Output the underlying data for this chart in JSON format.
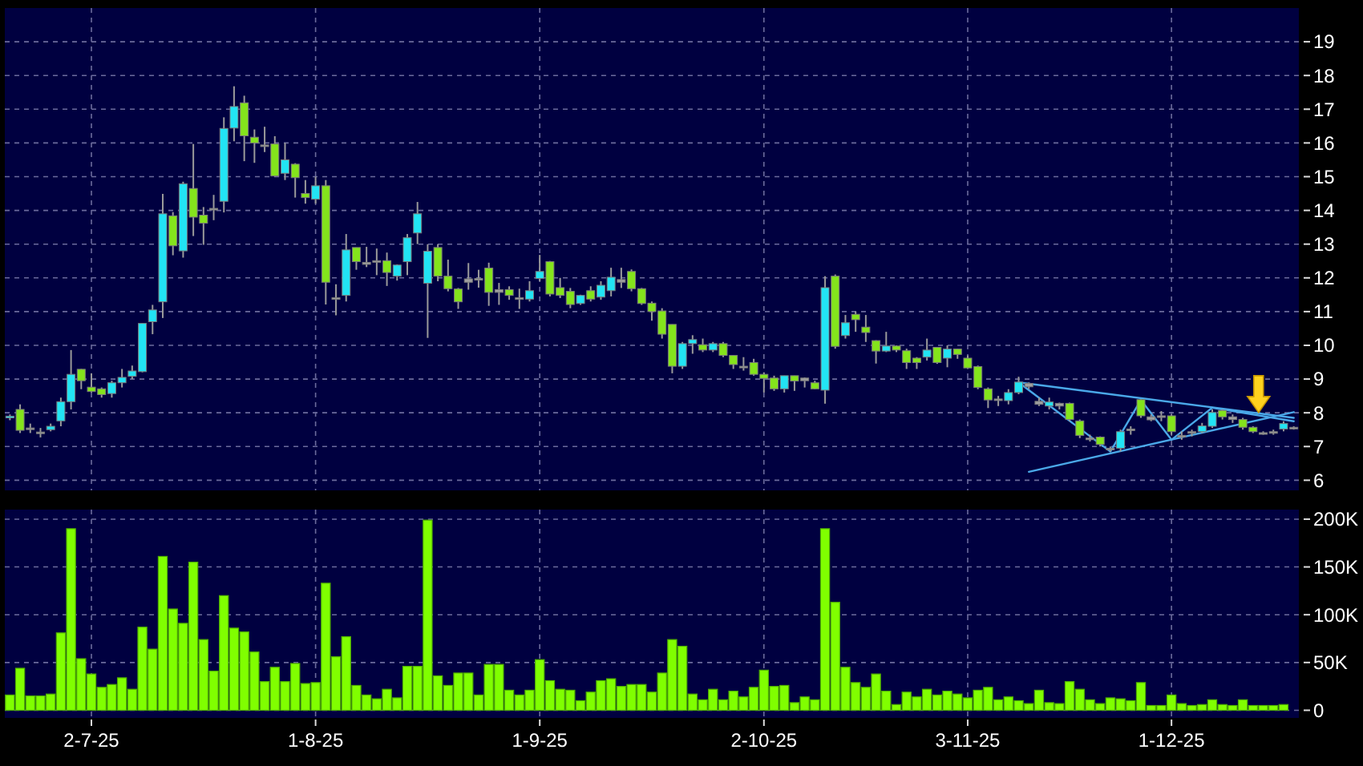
{
  "chart_data": [
    {
      "type": "candlestick",
      "tick_labels": "y",
      "grid": true,
      "categories": [
        null,
        null,
        null,
        null,
        null,
        null,
        null,
        null,
        null,
        null,
        null,
        null,
        null,
        null,
        null,
        null,
        null,
        null,
        null,
        null,
        null,
        null,
        null,
        null,
        null,
        null,
        null,
        null,
        null,
        null,
        null,
        null,
        null,
        null,
        null,
        null,
        null,
        null,
        null,
        null,
        null,
        null,
        null,
        null,
        null,
        null,
        null,
        null,
        null,
        null,
        null,
        null,
        null,
        null,
        null,
        null,
        null,
        null,
        null,
        null,
        null,
        null,
        null,
        null,
        null,
        null,
        null,
        null,
        null,
        null,
        null,
        null,
        null,
        null,
        null,
        null,
        null,
        null,
        null,
        null,
        null,
        null,
        null,
        null,
        null,
        null,
        null,
        null,
        null,
        null,
        null,
        null,
        null,
        null,
        null,
        null,
        null,
        null,
        null,
        null,
        null,
        null,
        null,
        null,
        null,
        null,
        null,
        null,
        null,
        null,
        null,
        null,
        null,
        null,
        null,
        null,
        null,
        null,
        null,
        null,
        null,
        null,
        null,
        null,
        null,
        null,
        null
      ],
      "ohlc": [
        [
          7.85,
          7.95,
          7.78,
          7.9
        ],
        [
          8.1,
          8.25,
          7.4,
          7.48
        ],
        [
          7.55,
          7.68,
          7.4,
          7.55
        ],
        [
          7.43,
          7.55,
          7.27,
          7.43
        ],
        [
          7.5,
          7.68,
          7.45,
          7.6
        ],
        [
          7.76,
          8.45,
          7.6,
          8.33
        ],
        [
          8.33,
          9.86,
          8.1,
          9.14
        ],
        [
          9.29,
          9.3,
          8.7,
          8.95
        ],
        [
          8.76,
          9.17,
          8.6,
          8.63
        ],
        [
          8.71,
          8.75,
          8.45,
          8.54
        ],
        [
          8.57,
          8.95,
          8.45,
          8.89
        ],
        [
          8.89,
          9.3,
          8.75,
          9.05
        ],
        [
          9.08,
          9.4,
          9.0,
          9.24
        ],
        [
          9.22,
          10.65,
          9.2,
          10.65
        ],
        [
          10.7,
          11.2,
          10.33,
          11.05
        ],
        [
          11.29,
          14.49,
          10.81,
          13.9
        ],
        [
          13.84,
          13.95,
          12.67,
          12.95
        ],
        [
          12.8,
          14.85,
          12.6,
          14.79
        ],
        [
          14.65,
          15.97,
          13.24,
          13.8
        ],
        [
          13.86,
          14.1,
          12.98,
          13.62
        ],
        [
          14.06,
          14.46,
          13.71,
          14.06
        ],
        [
          14.27,
          16.76,
          13.94,
          16.43
        ],
        [
          16.44,
          17.68,
          16.05,
          17.08
        ],
        [
          17.19,
          17.4,
          15.46,
          16.21
        ],
        [
          16.17,
          16.4,
          15.41,
          16.0
        ],
        [
          15.94,
          16.48,
          15.73,
          15.94
        ],
        [
          15.97,
          16.2,
          15.0,
          15.02
        ],
        [
          15.1,
          16.0,
          14.9,
          15.5
        ],
        [
          15.37,
          15.4,
          14.38,
          14.97
        ],
        [
          14.5,
          14.9,
          14.2,
          14.38
        ],
        [
          14.33,
          15.0,
          14.2,
          14.73
        ],
        [
          14.73,
          14.9,
          11.21,
          11.87
        ],
        [
          11.41,
          11.81,
          10.89,
          11.41
        ],
        [
          11.48,
          13.3,
          11.3,
          12.83
        ],
        [
          12.9,
          12.9,
          12.24,
          12.48
        ],
        [
          12.46,
          12.92,
          12.32,
          12.4
        ],
        [
          12.51,
          12.87,
          12.08,
          12.51
        ],
        [
          12.51,
          12.75,
          11.76,
          12.16
        ],
        [
          12.05,
          12.4,
          11.92,
          12.38
        ],
        [
          12.48,
          13.3,
          12.08,
          13.19
        ],
        [
          13.33,
          14.25,
          13.0,
          13.9
        ],
        [
          11.84,
          13.0,
          10.22,
          12.79
        ],
        [
          12.9,
          13.0,
          11.9,
          12.05
        ],
        [
          12.05,
          12.54,
          11.6,
          11.68
        ],
        [
          11.67,
          11.7,
          11.08,
          11.29
        ],
        [
          11.97,
          12.44,
          11.65,
          11.87
        ],
        [
          11.98,
          12.24,
          11.71,
          11.98
        ],
        [
          12.29,
          12.45,
          11.17,
          11.57
        ],
        [
          11.65,
          11.85,
          11.2,
          11.57
        ],
        [
          11.65,
          11.75,
          11.35,
          11.48
        ],
        [
          11.41,
          11.68,
          11.08,
          11.41
        ],
        [
          11.37,
          11.9,
          11.3,
          11.62
        ],
        [
          11.98,
          12.68,
          11.9,
          12.19
        ],
        [
          12.48,
          12.5,
          11.45,
          11.52
        ],
        [
          11.71,
          12.0,
          11.4,
          11.48
        ],
        [
          11.6,
          11.7,
          11.1,
          11.21
        ],
        [
          11.24,
          11.5,
          11.2,
          11.48
        ],
        [
          11.62,
          11.75,
          11.3,
          11.37
        ],
        [
          11.43,
          11.9,
          11.35,
          11.78
        ],
        [
          11.62,
          12.3,
          11.45,
          12.02
        ],
        [
          11.95,
          12.3,
          11.7,
          11.87
        ],
        [
          12.19,
          12.25,
          11.6,
          11.68
        ],
        [
          11.68,
          11.7,
          11.2,
          11.24
        ],
        [
          11.25,
          11.3,
          10.73,
          11.0
        ],
        [
          11.02,
          11.1,
          10.2,
          10.33
        ],
        [
          10.62,
          10.62,
          9.17,
          9.38
        ],
        [
          9.38,
          10.1,
          9.3,
          10.05
        ],
        [
          10.05,
          10.3,
          9.75,
          10.17
        ],
        [
          10.02,
          10.2,
          9.8,
          9.86
        ],
        [
          9.86,
          10.1,
          9.8,
          10.05
        ],
        [
          10.05,
          10.1,
          9.65,
          9.7
        ],
        [
          9.7,
          9.7,
          9.3,
          9.43
        ],
        [
          9.38,
          9.65,
          9.25,
          9.38
        ],
        [
          9.49,
          9.6,
          9.1,
          9.14
        ],
        [
          9.14,
          9.2,
          8.6,
          9.02
        ],
        [
          9.03,
          9.1,
          8.65,
          8.71
        ],
        [
          8.71,
          9.1,
          8.6,
          9.1
        ],
        [
          9.1,
          9.1,
          8.65,
          8.94
        ],
        [
          9.03,
          9.05,
          8.75,
          8.95
        ],
        [
          8.89,
          8.95,
          8.7,
          8.71
        ],
        [
          8.67,
          12.05,
          8.27,
          11.71
        ],
        [
          12.05,
          12.1,
          9.9,
          9.97
        ],
        [
          10.29,
          10.9,
          10.2,
          10.67
        ],
        [
          10.92,
          11.0,
          10.4,
          10.76
        ],
        [
          10.54,
          10.9,
          10.1,
          10.38
        ],
        [
          10.14,
          10.15,
          9.46,
          9.83
        ],
        [
          9.83,
          10.4,
          9.8,
          9.98
        ],
        [
          9.98,
          10.0,
          9.8,
          9.86
        ],
        [
          9.84,
          9.9,
          9.3,
          9.49
        ],
        [
          9.62,
          9.65,
          9.3,
          9.49
        ],
        [
          9.65,
          10.2,
          9.55,
          9.86
        ],
        [
          9.94,
          9.95,
          9.45,
          9.49
        ],
        [
          9.62,
          10.0,
          9.35,
          9.89
        ],
        [
          9.89,
          9.9,
          9.6,
          9.73
        ],
        [
          9.62,
          9.7,
          9.3,
          9.33
        ],
        [
          9.37,
          9.4,
          8.7,
          8.75
        ],
        [
          8.71,
          8.75,
          8.14,
          8.38
        ],
        [
          8.41,
          8.5,
          8.2,
          8.41
        ],
        [
          8.36,
          8.7,
          8.25,
          8.6
        ],
        [
          8.6,
          9.07,
          8.55,
          8.91
        ],
        [
          8.87,
          8.9,
          8.7,
          8.77
        ],
        [
          8.34,
          8.45,
          8.2,
          8.25
        ],
        [
          8.2,
          8.45,
          8.1,
          8.32
        ],
        [
          8.28,
          8.3,
          8.1,
          8.2
        ],
        [
          8.28,
          8.3,
          7.75,
          7.8
        ],
        [
          7.76,
          7.8,
          7.25,
          7.33
        ],
        [
          7.25,
          7.35,
          7.15,
          7.25
        ],
        [
          7.28,
          7.3,
          7.0,
          7.06
        ],
        [
          6.95,
          7.0,
          6.85,
          6.95
        ],
        [
          6.95,
          7.5,
          6.85,
          7.44
        ],
        [
          7.52,
          7.6,
          7.35,
          7.52
        ],
        [
          8.39,
          8.4,
          7.85,
          7.91
        ],
        [
          7.88,
          7.95,
          7.75,
          7.79
        ],
        [
          7.91,
          8.05,
          7.75,
          7.91
        ],
        [
          7.91,
          7.95,
          7.35,
          7.44
        ],
        [
          7.33,
          7.45,
          7.2,
          7.33
        ],
        [
          7.44,
          7.5,
          7.3,
          7.44
        ],
        [
          7.44,
          7.7,
          7.4,
          7.61
        ],
        [
          7.6,
          8.1,
          7.55,
          8.01
        ],
        [
          8.07,
          8.1,
          7.8,
          7.88
        ],
        [
          7.88,
          7.95,
          7.7,
          7.8
        ],
        [
          7.8,
          7.85,
          7.5,
          7.57
        ],
        [
          7.57,
          7.6,
          7.4,
          7.44
        ],
        [
          7.41,
          7.45,
          7.35,
          7.41
        ],
        [
          7.44,
          7.5,
          7.35,
          7.44
        ],
        [
          7.52,
          7.75,
          7.45,
          7.68
        ],
        [
          7.57,
          7.6,
          7.5,
          7.57
        ]
      ],
      "colors": [
        "#22e4f4",
        "#84e41c",
        "#a0a0a0",
        "#a0a0a0",
        "#22e4f4",
        "#22e4f4",
        "#22e4f4",
        "#84e41c",
        "#84e41c",
        "#84e41c",
        "#22e4f4",
        "#22e4f4",
        "#22e4f4",
        "#22e4f4",
        "#22e4f4",
        "#22e4f4",
        "#84e41c",
        "#22e4f4",
        "#84e41c",
        "#84e41c",
        "#a0a0a0",
        "#22e4f4",
        "#22e4f4",
        "#84e41c",
        "#84e41c",
        "#a0a0a0",
        "#84e41c",
        "#22e4f4",
        "#84e41c",
        "#84e41c",
        "#22e4f4",
        "#84e41c",
        "#a0a0a0",
        "#22e4f4",
        "#84e41c",
        "#a0a0a0",
        "#a0a0a0",
        "#84e41c",
        "#22e4f4",
        "#22e4f4",
        "#22e4f4",
        "#22e4f4",
        "#84e41c",
        "#84e41c",
        "#84e41c",
        "#a0a0a0",
        "#a0a0a0",
        "#84e41c",
        "#a0a0a0",
        "#84e41c",
        "#a0a0a0",
        "#22e4f4",
        "#22e4f4",
        "#84e41c",
        "#84e41c",
        "#84e41c",
        "#22e4f4",
        "#84e41c",
        "#22e4f4",
        "#22e4f4",
        "#a0a0a0",
        "#84e41c",
        "#84e41c",
        "#84e41c",
        "#84e41c",
        "#84e41c",
        "#22e4f4",
        "#22e4f4",
        "#84e41c",
        "#22e4f4",
        "#84e41c",
        "#84e41c",
        "#a0a0a0",
        "#84e41c",
        "#84e41c",
        "#84e41c",
        "#22e4f4",
        "#84e41c",
        "#a0a0a0",
        "#84e41c",
        "#22e4f4",
        "#84e41c",
        "#22e4f4",
        "#84e41c",
        "#84e41c",
        "#84e41c",
        "#22e4f4",
        "#84e41c",
        "#84e41c",
        "#84e41c",
        "#22e4f4",
        "#84e41c",
        "#22e4f4",
        "#84e41c",
        "#84e41c",
        "#84e41c",
        "#84e41c",
        "#a0a0a0",
        "#22e4f4",
        "#22e4f4",
        "#a0a0a0",
        "#a0a0a0",
        "#22e4f4",
        "#a0a0a0",
        "#84e41c",
        "#84e41c",
        "#a0a0a0",
        "#84e41c",
        "#a0a0a0",
        "#22e4f4",
        "#a0a0a0",
        "#84e41c",
        "#a0a0a0",
        "#a0a0a0",
        "#84e41c",
        "#a0a0a0",
        "#a0a0a0",
        "#22e4f4",
        "#22e4f4",
        "#84e41c",
        "#a0a0a0",
        "#84e41c",
        "#84e41c",
        "#a0a0a0",
        "#a0a0a0",
        "#22e4f4",
        "#a0a0a0"
      ],
      "series": [
        {
          "type": "line",
          "color": "#4aa8e8",
          "values": [
            null,
            null,
            null,
            null,
            null,
            null,
            null,
            null,
            null,
            null,
            null,
            null,
            null,
            null,
            null,
            null,
            null,
            null,
            null,
            null,
            null,
            null,
            null,
            null,
            null,
            null,
            null,
            null,
            null,
            null,
            null,
            null,
            null,
            null,
            null,
            null,
            null,
            null,
            null,
            null,
            null,
            null,
            null,
            null,
            null,
            null,
            null,
            null,
            null,
            null,
            null,
            null,
            null,
            null,
            null,
            null,
            null,
            null,
            null,
            null,
            null,
            null,
            null,
            null,
            null,
            null,
            null,
            null,
            null,
            null,
            null,
            null,
            null,
            null,
            null,
            null,
            null,
            null,
            null,
            null,
            null,
            null,
            null,
            null,
            null,
            null,
            null,
            null,
            null,
            null,
            null,
            null,
            null,
            null,
            null,
            null,
            null,
            null,
            null,
            8.9,
            null,
            null,
            null,
            null,
            null,
            null,
            null,
            null,
            null,
            null,
            null,
            null,
            null,
            null,
            null,
            null,
            null,
            null,
            null,
            null,
            null,
            null,
            null,
            null,
            null,
            null,
            7.85
          ]
        },
        {
          "type": "line",
          "color": "#4aa8e8",
          "values": [
            null,
            null,
            null,
            null,
            null,
            null,
            null,
            null,
            null,
            null,
            null,
            null,
            null,
            null,
            null,
            null,
            null,
            null,
            null,
            null,
            null,
            null,
            null,
            null,
            null,
            null,
            null,
            null,
            null,
            null,
            null,
            null,
            null,
            null,
            null,
            null,
            null,
            null,
            null,
            null,
            null,
            null,
            null,
            null,
            null,
            null,
            null,
            null,
            null,
            null,
            null,
            null,
            null,
            null,
            null,
            null,
            null,
            null,
            null,
            null,
            null,
            null,
            null,
            null,
            null,
            null,
            null,
            null,
            null,
            null,
            null,
            null,
            null,
            null,
            null,
            null,
            null,
            null,
            null,
            null,
            null,
            null,
            null,
            null,
            null,
            null,
            null,
            null,
            null,
            null,
            null,
            null,
            null,
            null,
            null,
            null,
            null,
            null,
            null,
            null,
            6.25,
            null,
            null,
            null,
            null,
            null,
            null,
            null,
            null,
            null,
            null,
            null,
            null,
            null,
            null,
            null,
            null,
            null,
            null,
            null,
            null,
            null,
            null,
            null,
            null,
            null,
            8.02
          ]
        },
        {
          "type": "line",
          "color": "#4aa8e8",
          "values": [
            null,
            null,
            null,
            null,
            null,
            null,
            null,
            null,
            null,
            null,
            null,
            null,
            null,
            null,
            null,
            null,
            null,
            null,
            null,
            null,
            null,
            null,
            null,
            null,
            null,
            null,
            null,
            null,
            null,
            null,
            null,
            null,
            null,
            null,
            null,
            null,
            null,
            null,
            null,
            null,
            null,
            null,
            null,
            null,
            null,
            null,
            null,
            null,
            null,
            null,
            null,
            null,
            null,
            null,
            null,
            null,
            null,
            null,
            null,
            null,
            null,
            null,
            null,
            null,
            null,
            null,
            null,
            null,
            null,
            null,
            null,
            null,
            null,
            null,
            null,
            null,
            null,
            null,
            null,
            null,
            null,
            null,
            null,
            null,
            null,
            null,
            null,
            null,
            null,
            null,
            null,
            null,
            null,
            null,
            null,
            null,
            null,
            null,
            null,
            8.9,
            null,
            null,
            null,
            null,
            null,
            null,
            null,
            null,
            6.85,
            null,
            null,
            8.38,
            null,
            null,
            7.2,
            null,
            null,
            null,
            8.15,
            null,
            null,
            null,
            null,
            null,
            null,
            null,
            7.75
          ]
        }
      ],
      "ylim": [
        5.7,
        20
      ],
      "yticks": [
        6,
        7,
        8,
        9,
        10,
        11,
        12,
        13,
        14,
        15,
        16,
        17,
        18,
        19
      ]
    },
    {
      "type": "bar",
      "grid": true,
      "color": "#80ff00",
      "categories": [
        null,
        null,
        null,
        null,
        null,
        null,
        null,
        null,
        "2-7-25",
        null,
        null,
        null,
        null,
        null,
        null,
        null,
        null,
        null,
        null,
        null,
        null,
        null,
        null,
        null,
        null,
        null,
        null,
        null,
        null,
        null,
        "1-8-25",
        null,
        null,
        null,
        null,
        null,
        null,
        null,
        null,
        null,
        null,
        null,
        null,
        null,
        null,
        null,
        null,
        null,
        null,
        null,
        null,
        null,
        "1-9-25",
        null,
        null,
        null,
        null,
        null,
        null,
        null,
        null,
        null,
        null,
        null,
        null,
        null,
        null,
        null,
        null,
        null,
        null,
        null,
        null,
        null,
        "2-10-25",
        null,
        null,
        null,
        null,
        null,
        null,
        null,
        null,
        null,
        null,
        null,
        null,
        null,
        null,
        null,
        null,
        null,
        null,
        null,
        "3-11-25",
        null,
        null,
        null,
        null,
        null,
        null,
        null,
        null,
        null,
        null,
        null,
        null,
        null,
        null,
        null,
        null,
        null,
        null,
        null,
        "1-12-25",
        null,
        null,
        null,
        null,
        null,
        null,
        null,
        null,
        null,
        null,
        null,
        null
      ],
      "values": [
        16000,
        44000,
        15000,
        15000,
        17000,
        81000,
        190000,
        54000,
        38000,
        24000,
        27000,
        34000,
        22000,
        87000,
        64000,
        161000,
        106000,
        91000,
        155000,
        74000,
        41000,
        120000,
        86000,
        82000,
        61000,
        30000,
        45000,
        30000,
        49000,
        28000,
        29000,
        133000,
        56000,
        77000,
        26000,
        16000,
        12000,
        22000,
        13000,
        46000,
        46000,
        199000,
        36000,
        26000,
        39000,
        39000,
        16000,
        48000,
        48000,
        21000,
        16000,
        21000,
        53000,
        31000,
        22000,
        21000,
        10000,
        19000,
        31000,
        33000,
        25000,
        27000,
        27000,
        19000,
        39000,
        74000,
        67000,
        17000,
        11000,
        22000,
        11000,
        20000,
        14000,
        24000,
        42000,
        25000,
        26000,
        8000,
        14000,
        11000,
        190000,
        113000,
        45000,
        29000,
        24000,
        38000,
        20000,
        6000,
        19000,
        14000,
        22000,
        16000,
        20000,
        17000,
        13000,
        21000,
        24000,
        11000,
        14000,
        10000,
        7000,
        21000,
        8000,
        7000,
        30000,
        22000,
        11000,
        7000,
        13000,
        12000,
        10000,
        29000,
        5000,
        5000,
        16000,
        7000,
        5000,
        6000,
        11000,
        6000,
        5000,
        11000,
        5000,
        5000,
        5000,
        6000,
        null
      ],
      "ylim": [
        -8000,
        210000
      ],
      "yticks": [
        0,
        {
          "value": 50000,
          "label": "50K"
        },
        {
          "value": 100000,
          "label": "100K"
        },
        {
          "value": 150000,
          "label": "150K"
        },
        {
          "value": 200000,
          "label": "200K"
        }
      ]
    }
  ]
}
